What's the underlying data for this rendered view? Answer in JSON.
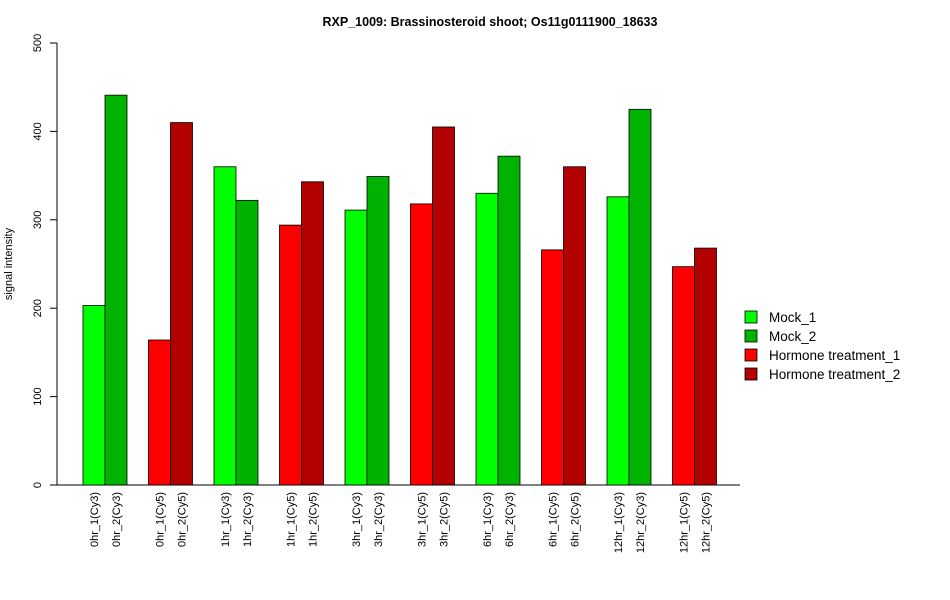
{
  "chart_data": {
    "type": "bar",
    "title": "RXP_1009: Brassinosteroid shoot; Os11g0111900_18633",
    "xlabel": "",
    "ylabel": "signal intensity",
    "ylim": [
      0,
      500
    ],
    "yticks": [
      0,
      100,
      200,
      300,
      400,
      500
    ],
    "grid": false,
    "legend_position": "right",
    "categories": [
      "0hr_1(Cy3)",
      "0hr_2(Cy3)",
      "0hr_1(Cy5)",
      "0hr_2(Cy5)",
      "1hr_1(Cy3)",
      "1hr_2(Cy3)",
      "1hr_1(Cy5)",
      "1hr_2(Cy5)",
      "3hr_1(Cy3)",
      "3hr_2(Cy3)",
      "3hr_1(Cy5)",
      "3hr_2(Cy5)",
      "6hr_1(Cy3)",
      "6hr_2(Cy3)",
      "6hr_1(Cy5)",
      "6hr_2(Cy5)",
      "12hr_1(Cy3)",
      "12hr_2(Cy3)",
      "12hr_1(Cy5)",
      "12hr_2(Cy5)"
    ],
    "values": [
      203,
      441,
      164,
      410,
      360,
      322,
      294,
      343,
      311,
      349,
      318,
      405,
      330,
      372,
      266,
      360,
      326,
      425,
      247,
      268
    ],
    "bar_series_index": [
      0,
      1,
      2,
      3,
      0,
      1,
      2,
      3,
      0,
      1,
      2,
      3,
      0,
      1,
      2,
      3,
      0,
      1,
      2,
      3
    ],
    "series": [
      {
        "name": "Mock_1",
        "color": "#00ff00"
      },
      {
        "name": "Mock_2",
        "color": "#00b300"
      },
      {
        "name": "Hormone treatment_1",
        "color": "#ff0000"
      },
      {
        "name": "Hormone treatment_2",
        "color": "#b30000"
      }
    ]
  }
}
